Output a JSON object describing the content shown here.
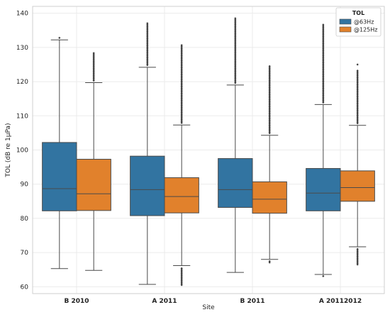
{
  "chart_data": {
    "type": "boxplot",
    "title": "",
    "xlabel": "Site",
    "ylabel": "TOL (dB re 1μPa)",
    "ylim": [
      58,
      142
    ],
    "yticks": [
      60,
      70,
      80,
      90,
      100,
      110,
      120,
      130,
      140
    ],
    "grid": true,
    "legend": {
      "title": "TOL",
      "placement": "top-right"
    },
    "categories": [
      "B 2010",
      "A 2011",
      "B 2011",
      "A 20112012"
    ],
    "series": [
      {
        "name": "@63Hz",
        "color": "#3274a1",
        "boxes": [
          {
            "whislo": 65.3,
            "q1": 82.2,
            "med": 88.7,
            "q3": 102.2,
            "whishi": 132.2,
            "fliers_hi": [
              132.8
            ],
            "fliers_lo": []
          },
          {
            "whislo": 60.7,
            "q1": 80.8,
            "med": 88.4,
            "q3": 98.2,
            "whishi": 124.2,
            "fliers_hi": [
              124.8,
              137.2
            ],
            "fliers_lo": []
          },
          {
            "whislo": 64.2,
            "q1": 83.2,
            "med": 88.4,
            "q3": 97.5,
            "whishi": 119.0,
            "fliers_hi": [
              119.6,
              138.7
            ],
            "fliers_lo": []
          },
          {
            "whislo": 63.6,
            "q1": 82.2,
            "med": 87.4,
            "q3": 94.6,
            "whishi": 113.3,
            "fliers_hi": [
              113.9,
              136.8
            ],
            "fliers_lo": [
              63.1
            ]
          }
        ]
      },
      {
        "name": "@125Hz",
        "color": "#e1812c",
        "boxes": [
          {
            "whislo": 64.8,
            "q1": 82.3,
            "med": 87.2,
            "q3": 97.3,
            "whishi": 119.7,
            "fliers_hi": [
              120.3,
              128.5
            ],
            "fliers_lo": []
          },
          {
            "whislo": 66.2,
            "q1": 81.6,
            "med": 86.4,
            "q3": 91.9,
            "whishi": 107.3,
            "fliers_hi": [
              107.9,
              130.8
            ],
            "fliers_lo": [
              60.5,
              65.6
            ]
          },
          {
            "whislo": 68.0,
            "q1": 81.5,
            "med": 85.6,
            "q3": 90.7,
            "whishi": 104.3,
            "fliers_hi": [
              104.9,
              124.8
            ],
            "fliers_lo": [
              67.1,
              67.6
            ]
          },
          {
            "whislo": 71.7,
            "q1": 85.0,
            "med": 89.0,
            "q3": 93.9,
            "whishi": 107.2,
            "fliers_hi": [
              107.8,
              123.4
            ],
            "fliers_lo": [
              66.5,
              71.1
            ],
            "fliers_extra": [
              125.0
            ]
          }
        ]
      }
    ]
  }
}
